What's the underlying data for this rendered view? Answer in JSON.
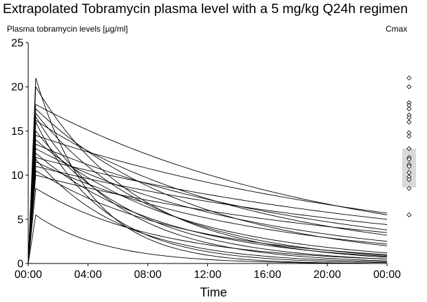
{
  "chart_data": {
    "type": "line",
    "title": "Extrapolated Tobramycin plasma level with a 5 mg/kg Q24h regimen",
    "ylabel": "Plasma tobramycin levels [µg/ml]",
    "xlabel": "Time",
    "cmax_label": "Cmax",
    "x_unit": "hours",
    "xlim": [
      0,
      24
    ],
    "ylim": [
      0,
      25
    ],
    "x_ticks": [
      {
        "value": 0,
        "label": "00:00"
      },
      {
        "value": 4,
        "label": "04:00"
      },
      {
        "value": 8,
        "label": "08:00"
      },
      {
        "value": 12,
        "label": "12:00"
      },
      {
        "value": 16,
        "label": "16:00"
      },
      {
        "value": 20,
        "label": "20:00"
      },
      {
        "value": 24,
        "label": "00:00"
      }
    ],
    "y_ticks": [
      0,
      5,
      10,
      15,
      20,
      25
    ],
    "grid": false,
    "dose_start": 0,
    "peak_time": 0.5,
    "series": [
      {
        "peak": 21.0,
        "trough": 0.0
      },
      {
        "peak": 20.0,
        "trough": 0.7
      },
      {
        "peak": 18.0,
        "trough": 5.5
      },
      {
        "peak": 17.5,
        "trough": 2.0
      },
      {
        "peak": 17.0,
        "trough": 0.9
      },
      {
        "peak": 16.6,
        "trough": 0.3
      },
      {
        "peak": 16.2,
        "trough": 3.2
      },
      {
        "peak": 16.0,
        "trough": 0.1
      },
      {
        "peak": 15.0,
        "trough": 0.5
      },
      {
        "peak": 14.5,
        "trough": 5.7
      },
      {
        "peak": 14.0,
        "trough": 1.2
      },
      {
        "peak": 13.5,
        "trough": 3.8
      },
      {
        "peak": 13.0,
        "trough": 2.5
      },
      {
        "peak": 12.5,
        "trough": 0.8
      },
      {
        "peak": 12.0,
        "trough": 5.0
      },
      {
        "peak": 11.8,
        "trough": 0.2
      },
      {
        "peak": 11.5,
        "trough": 2.2
      },
      {
        "peak": 11.0,
        "trough": 4.4
      },
      {
        "peak": 10.5,
        "trough": 1.0
      },
      {
        "peak": 10.0,
        "trough": 3.5
      },
      {
        "peak": 8.5,
        "trough": 0.5
      },
      {
        "peak": 5.5,
        "trough": 0.0
      }
    ],
    "cmax_points": [
      21.0,
      20.0,
      18.2,
      17.9,
      17.5,
      16.8,
      16.5,
      16.0,
      14.8,
      14.4,
      13.0,
      12.0,
      11.8,
      11.2,
      11.0,
      10.3,
      9.8,
      9.5,
      8.5,
      5.5
    ],
    "cmax_box": {
      "q1": 8.6,
      "q3": 13.0,
      "color": "#d9d9d9"
    },
    "line_color": "#000000"
  }
}
